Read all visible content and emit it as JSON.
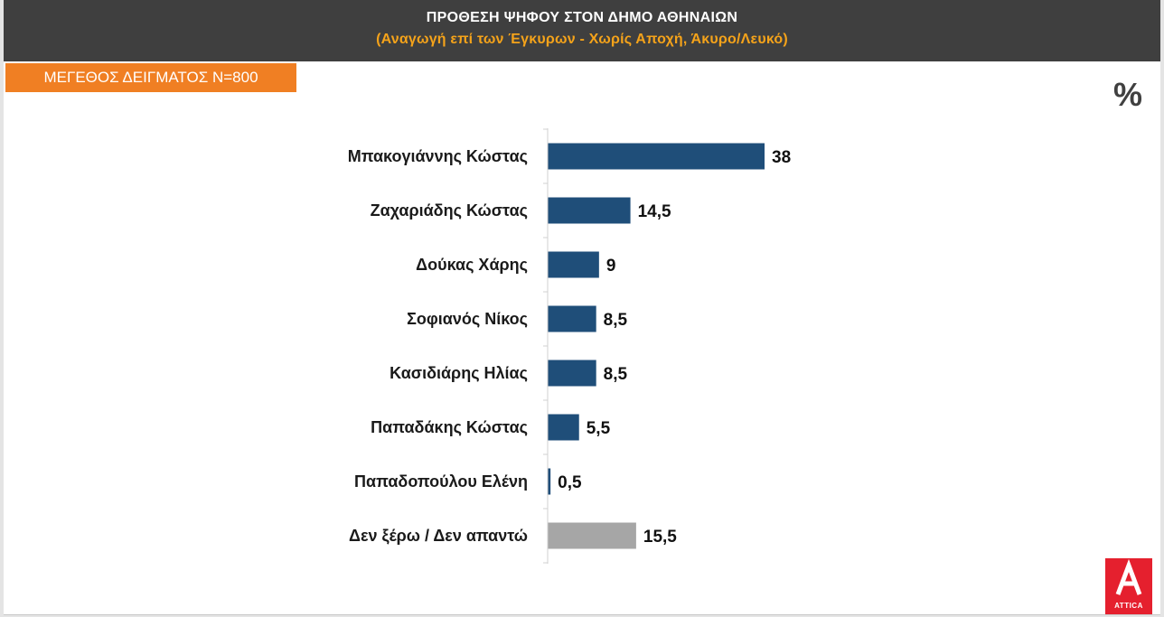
{
  "header": {
    "title": "ΠΡΟΘΕΣΗ ΨΗΦΟΥ ΣΤΟΝ ΔΗΜΟ ΑΘΗΝΑΙΩΝ",
    "subtitle": "(Αναγωγή επί των Έγκυρων - Χωρίς Αποχή, Άκυρο/Λευκό)"
  },
  "sample_badge": "ΜΕΓΕΘΟΣ ΔΕΙΓΜΑΤΟΣ Ν=800",
  "unit_symbol": "%",
  "brand": {
    "name": "ATTICA",
    "color": "#e5202e"
  },
  "colors": {
    "header_bg": "#3f3f3f",
    "subtitle": "#f5a31a",
    "badge_bg": "#f07f23",
    "bar_primary": "#1f4e79",
    "bar_undecided": "#a6a6a6"
  },
  "chart_data": {
    "type": "bar",
    "orientation": "horizontal",
    "title": "ΠΡΟΘΕΣΗ ΨΗΦΟΥ ΣΤΟΝ ΔΗΜΟ ΑΘΗΝΑΙΩΝ",
    "subtitle": "(Αναγωγή επί των Έγκυρων - Χωρίς Αποχή, Άκυρο/Λευκό)",
    "unit": "%",
    "xlim": [
      0,
      38
    ],
    "grid": false,
    "legend": "none",
    "categories": [
      "Μπακογιάννης Κώστας",
      "Ζαχαριάδης Κώστας",
      "Δούκας Χάρης",
      "Σοφιανός Νίκος",
      "Κασιδιάρης Ηλίας",
      "Παπαδάκης Κώστας",
      "Παπαδοπούλου Ελένη",
      "Δεν ξέρω / Δεν απαντώ"
    ],
    "values": [
      38,
      14.5,
      9,
      8.5,
      8.5,
      5.5,
      0.5,
      15.5
    ],
    "value_labels": [
      "38",
      "14,5",
      "9",
      "8,5",
      "8,5",
      "5,5",
      "0,5",
      "15,5"
    ],
    "bar_colors": [
      "#1f4e79",
      "#1f4e79",
      "#1f4e79",
      "#1f4e79",
      "#1f4e79",
      "#1f4e79",
      "#1f4e79",
      "#a6a6a6"
    ]
  }
}
